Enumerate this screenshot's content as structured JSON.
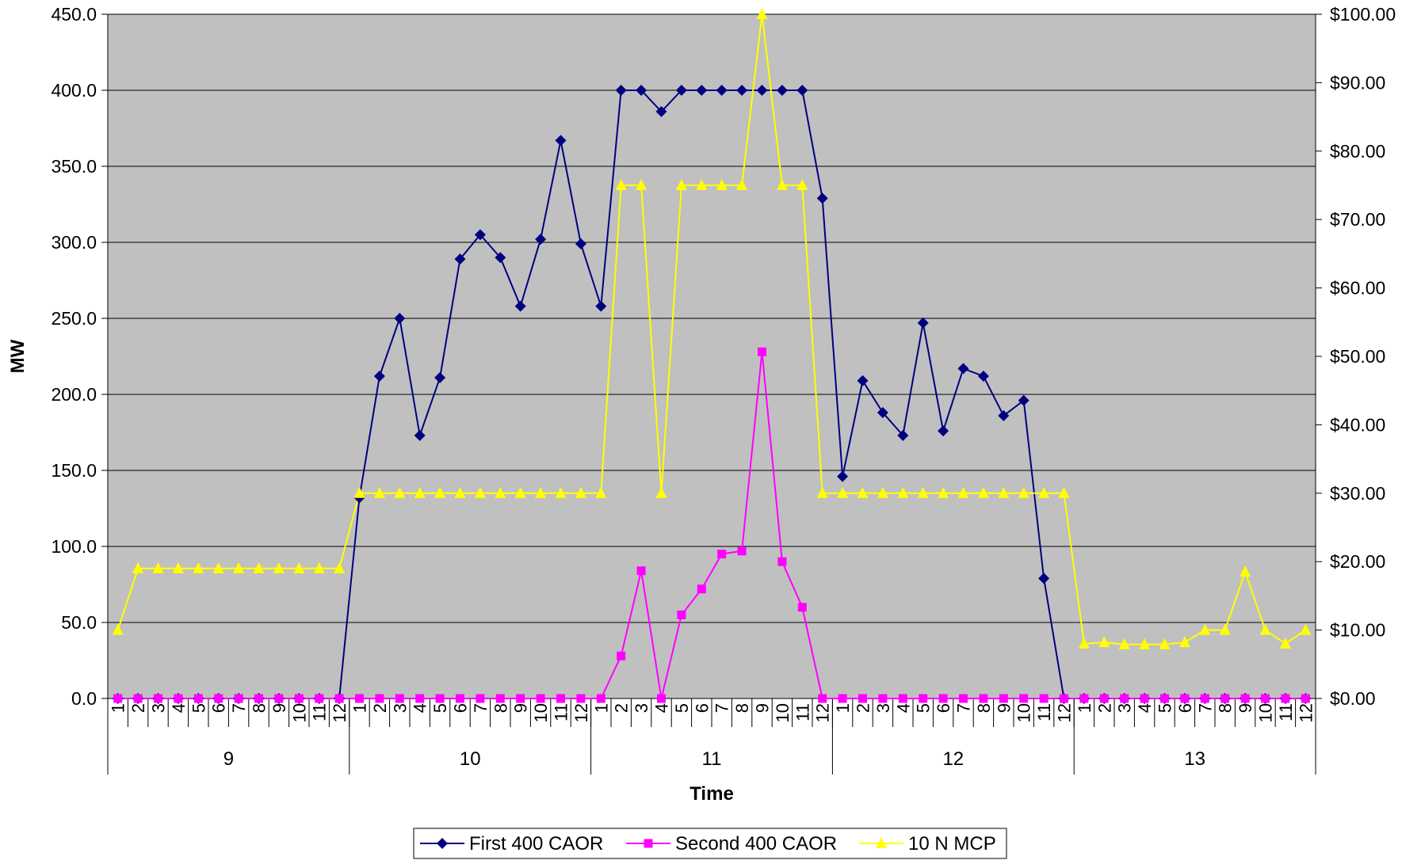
{
  "chart_data": {
    "type": "line",
    "xlabel": "Time",
    "ylabel": "MW",
    "ylim": [
      0,
      450
    ],
    "y2lim": [
      0,
      100
    ],
    "y_ticks": [
      "0.0",
      "50.0",
      "100.0",
      "150.0",
      "200.0",
      "250.0",
      "300.0",
      "350.0",
      "400.0",
      "450.0"
    ],
    "y2_ticks": [
      "$0.00",
      "$10.00",
      "$20.00",
      "$30.00",
      "$40.00",
      "$50.00",
      "$60.00",
      "$70.00",
      "$80.00",
      "$90.00",
      "$100.00"
    ],
    "interval_labels": [
      "1",
      "2",
      "3",
      "4",
      "5",
      "6",
      "7",
      "8",
      "9",
      "10",
      "11",
      "12"
    ],
    "hour_labels": [
      "9",
      "10",
      "11",
      "12",
      "13"
    ],
    "grid": true,
    "legend_position": "bottom",
    "colors": {
      "plot_bg": "#c0c0c0",
      "grid": "#000000"
    },
    "series": [
      {
        "name": "First 400 CAOR",
        "axis": "left",
        "color": "#000080",
        "marker": "diamond",
        "values": [
          0,
          0,
          0,
          0,
          0,
          0,
          0,
          0,
          0,
          0,
          0,
          0,
          132,
          212,
          250,
          173,
          211,
          289,
          305,
          290,
          258,
          302,
          367,
          299,
          258,
          400,
          400,
          386,
          400,
          400,
          400,
          400,
          400,
          400,
          400,
          329,
          146,
          209,
          188,
          173,
          247,
          176,
          217,
          212,
          186,
          196,
          79,
          0,
          0,
          0,
          0,
          0,
          0,
          0,
          0,
          0,
          0,
          0,
          0,
          0
        ]
      },
      {
        "name": "Second 400 CAOR",
        "axis": "left",
        "color": "#ff00ff",
        "marker": "square",
        "values": [
          0,
          0,
          0,
          0,
          0,
          0,
          0,
          0,
          0,
          0,
          0,
          0,
          0,
          0,
          0,
          0,
          0,
          0,
          0,
          0,
          0,
          0,
          0,
          0,
          0,
          28,
          84,
          0,
          55,
          72,
          95,
          97,
          228,
          90,
          60,
          0,
          0,
          0,
          0,
          0,
          0,
          0,
          0,
          0,
          0,
          0,
          0,
          0,
          0,
          0,
          0,
          0,
          0,
          0,
          0,
          0,
          0,
          0,
          0,
          0
        ]
      },
      {
        "name": "10 N MCP",
        "axis": "right",
        "color": "#ffff00",
        "marker": "triangle",
        "values": [
          10,
          19,
          19,
          19,
          19,
          19,
          19,
          19,
          19,
          19,
          19,
          19,
          30,
          30,
          30,
          30,
          30,
          30,
          30,
          30,
          30,
          30,
          30,
          30,
          30,
          75,
          75,
          30,
          75,
          75,
          75,
          75,
          100,
          75,
          75,
          30,
          30,
          30,
          30,
          30,
          30,
          30,
          30,
          30,
          30,
          30,
          30,
          30,
          8,
          8.2,
          7.9,
          7.9,
          7.9,
          8.2,
          10,
          10,
          18.5,
          10,
          8,
          10
        ]
      }
    ]
  }
}
